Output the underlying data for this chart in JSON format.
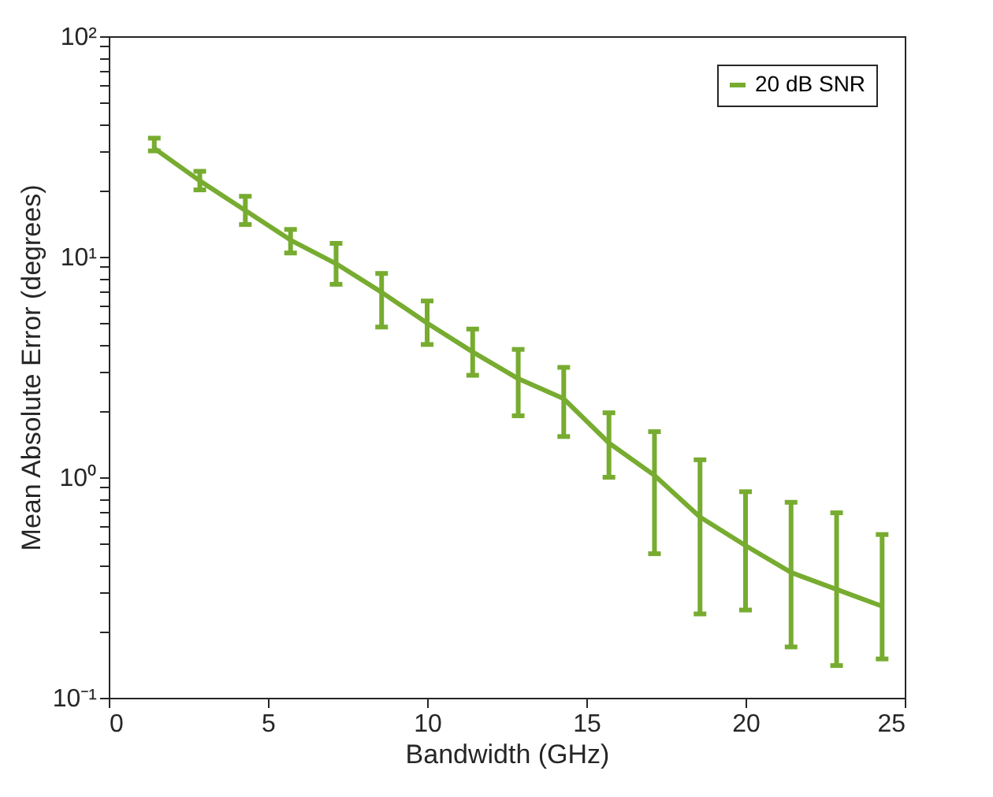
{
  "chart_data": {
    "type": "line",
    "xlabel": "Bandwidth (GHz)",
    "ylabel": "Mean Absolute Error (degrees)",
    "x": [
      1.43,
      2.86,
      4.29,
      5.71,
      7.14,
      8.57,
      10.0,
      11.43,
      12.86,
      14.29,
      15.71,
      17.14,
      18.57,
      20.0,
      21.43,
      22.86,
      24.29
    ],
    "series": [
      {
        "name": "20 dB SNR",
        "color": "#77ac30",
        "values": [
          31,
          22.1,
          16.2,
          11.9,
          9.3,
          6.9,
          5.0,
          3.7,
          2.8,
          2.27,
          1.43,
          1.02,
          0.66,
          0.49,
          0.37,
          0.31,
          0.26
        ],
        "errors": [
          [
            30.2,
            34.5
          ],
          [
            20.1,
            24.4
          ],
          [
            14.0,
            18.8
          ],
          [
            10.4,
            13.3
          ],
          [
            7.5,
            11.5
          ],
          [
            4.8,
            8.4
          ],
          [
            4.0,
            6.3
          ],
          [
            2.9,
            4.7
          ],
          [
            1.9,
            3.8
          ],
          [
            1.53,
            3.15
          ],
          [
            1.0,
            1.96
          ],
          [
            0.45,
            1.61
          ],
          [
            0.24,
            1.2
          ],
          [
            0.25,
            0.86
          ],
          [
            0.17,
            0.77
          ],
          [
            0.14,
            0.69
          ],
          [
            0.15,
            0.55
          ]
        ]
      }
    ],
    "log": "y",
    "xlim": [
      0,
      25
    ],
    "xticks": [
      0,
      5,
      10,
      15,
      20,
      25
    ],
    "ylim": [
      0.1,
      100
    ],
    "yticks": [
      {
        "value": 0.1,
        "label": "10⁻¹"
      },
      {
        "value": 0.2,
        "label": null
      },
      {
        "value": 0.3,
        "label": null
      },
      {
        "value": 0.4,
        "label": null
      },
      {
        "value": 0.5,
        "label": null
      },
      {
        "value": 0.6,
        "label": null
      },
      {
        "value": 0.7,
        "label": null
      },
      {
        "value": 0.8,
        "label": null
      },
      {
        "value": 0.9,
        "label": null
      },
      {
        "value": 1,
        "label": "10⁰"
      },
      {
        "value": 2,
        "label": null
      },
      {
        "value": 3,
        "label": null
      },
      {
        "value": 4,
        "label": null
      },
      {
        "value": 5,
        "label": null
      },
      {
        "value": 6,
        "label": null
      },
      {
        "value": 7,
        "label": null
      },
      {
        "value": 8,
        "label": null
      },
      {
        "value": 9,
        "label": null
      },
      {
        "value": 10,
        "label": "10¹"
      },
      {
        "value": 20,
        "label": null
      },
      {
        "value": 30,
        "label": null
      },
      {
        "value": 40,
        "label": null
      },
      {
        "value": 50,
        "label": null
      },
      {
        "value": 60,
        "label": null
      },
      {
        "value": 70,
        "label": null
      },
      {
        "value": 80,
        "label": null
      },
      {
        "value": 90,
        "label": null
      },
      {
        "value": 100,
        "label": "10²"
      }
    ],
    "legend": "top right",
    "grid": false,
    "marker": "none",
    "line_style": "solid"
  }
}
